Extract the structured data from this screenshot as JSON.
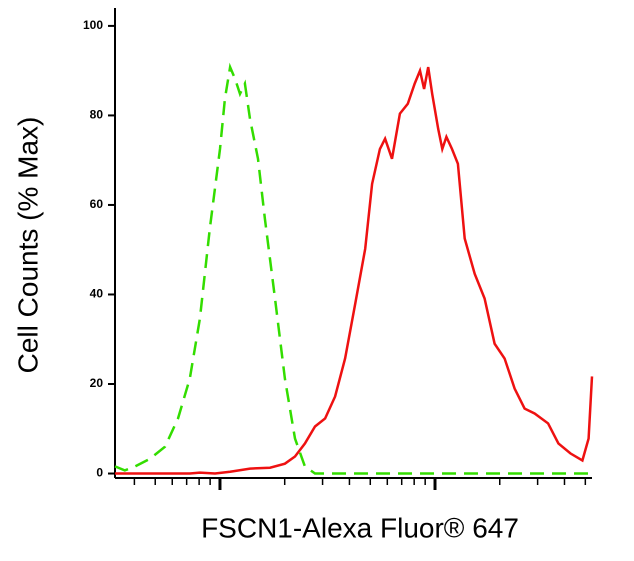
{
  "chart_data": {
    "type": "line",
    "ylabel": "Cell Counts (% Max)",
    "xlabel": "FSCN1-Alexa Fluor® 647",
    "xscale": "log",
    "xlim": [
      325,
      53703
    ],
    "ylim": [
      -1,
      104
    ],
    "yticks": [
      0,
      20,
      40,
      60,
      80,
      100
    ],
    "xticks": [
      400,
      500,
      600,
      700,
      800,
      900,
      1000,
      2000,
      3000,
      4000,
      5000,
      6000,
      7000,
      8000,
      9000,
      10000,
      20000,
      30000,
      40000,
      50000
    ],
    "series": [
      {
        "color": "#33dd00",
        "dash": true,
        "x": [
          325,
          361,
          403,
          472,
          555,
          638,
          724,
          807,
          897,
          1000,
          1054,
          1114,
          1175,
          1239,
          1306,
          1380,
          1503,
          1618,
          1803,
          2004,
          2234,
          2483,
          2767,
          3251,
          53703
        ],
        "values": [
          1.6,
          0.7,
          1.6,
          3.3,
          6,
          12.3,
          21.2,
          34.6,
          54.7,
          72.5,
          83.7,
          90.8,
          88.2,
          84.8,
          87.1,
          79.2,
          70.3,
          56.9,
          39.1,
          21.2,
          7.8,
          1.6,
          0,
          0,
          0
        ]
      },
      {
        "color": "#ee1111",
        "dash": false,
        "x": [
          325,
          724,
          807,
          948,
          1114,
          1380,
          1708,
          2004,
          2234,
          2483,
          2767,
          3082,
          3431,
          3820,
          4254,
          4737,
          5096,
          5545,
          5859,
          6309,
          6866,
          7471,
          8049,
          8514,
          8894,
          9293,
          9708,
          10351,
          10813,
          11296,
          11999,
          12772,
          13741,
          15289,
          17013,
          18934,
          21069,
          23449,
          26097,
          29045,
          33557,
          37467,
          42614,
          48468,
          51791,
          53703
        ],
        "values": [
          0,
          0,
          0.2,
          0,
          0.4,
          1.1,
          1.3,
          2.2,
          3.8,
          6.7,
          10.5,
          12.3,
          17.2,
          25.7,
          37.9,
          50.2,
          64.7,
          72.5,
          74.8,
          70.3,
          80.4,
          82.6,
          87.1,
          90,
          85.9,
          90.8,
          84.8,
          77,
          72.5,
          75.2,
          72.5,
          69.2,
          52.5,
          44.6,
          39.1,
          29,
          25.7,
          19,
          14.5,
          13.4,
          11.2,
          6.7,
          4.5,
          2.9,
          7.8,
          21.7
        ]
      }
    ]
  }
}
